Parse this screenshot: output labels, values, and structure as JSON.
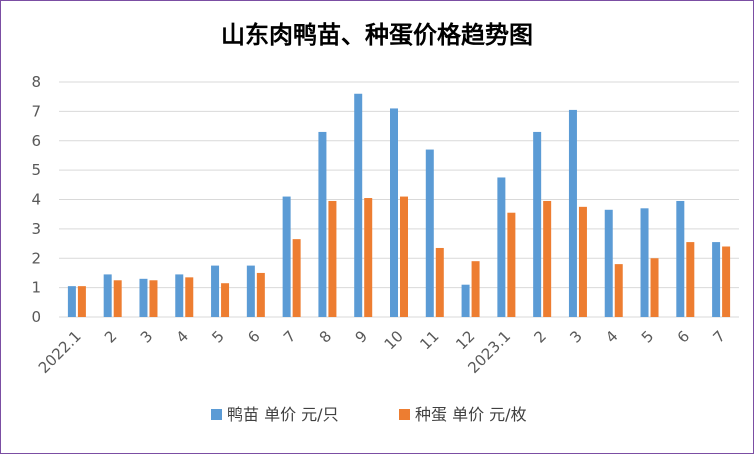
{
  "chart_data": {
    "type": "bar",
    "title": "山东肉鸭苗、种蛋价格趋势图",
    "categories": [
      "2022.1",
      "2",
      "3",
      "4",
      "5",
      "6",
      "7",
      "8",
      "9",
      "10",
      "11",
      "12",
      "2023.1",
      "2",
      "3",
      "4",
      "5",
      "6",
      "7"
    ],
    "series": [
      {
        "name": "鸭苗 单价 元/只",
        "color": "#5b9bd5",
        "values": [
          1.05,
          1.45,
          1.3,
          1.45,
          1.75,
          1.75,
          4.1,
          6.3,
          7.6,
          7.1,
          5.7,
          1.1,
          4.75,
          6.3,
          7.05,
          3.65,
          3.7,
          3.95,
          2.55
        ]
      },
      {
        "name": "种蛋 单价 元/枚",
        "color": "#ed7d31",
        "values": [
          1.05,
          1.25,
          1.25,
          1.35,
          1.15,
          1.5,
          2.65,
          3.95,
          4.05,
          4.1,
          2.35,
          1.9,
          3.55,
          3.95,
          3.75,
          1.8,
          2.0,
          2.55,
          2.4
        ]
      }
    ],
    "yticks": [
      "0",
      "1",
      "2",
      "3",
      "4",
      "5",
      "6",
      "7",
      "8"
    ],
    "ylim": [
      0,
      8
    ],
    "grid": true,
    "legend": "bottom"
  }
}
